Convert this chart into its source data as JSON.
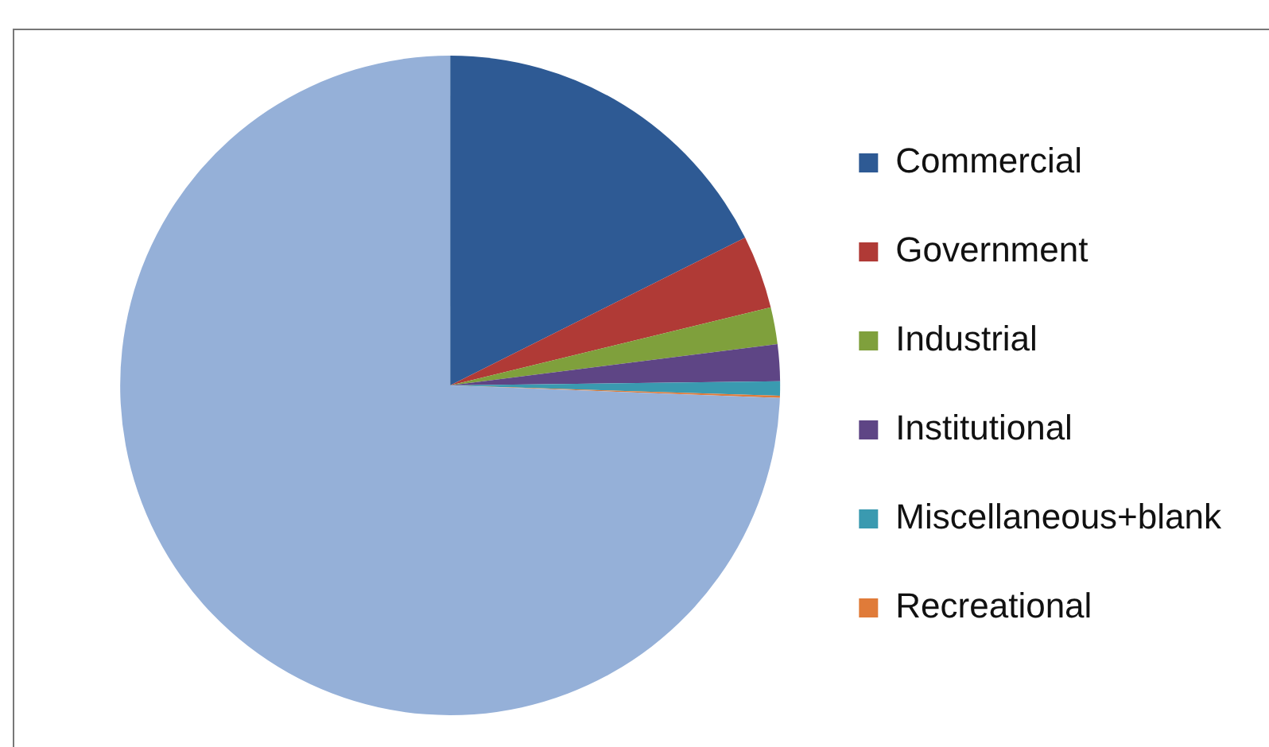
{
  "chart_data": {
    "type": "pie",
    "categories": [
      "Commercial",
      "Government",
      "Industrial",
      "Institutional",
      "Miscellaneous+blank",
      "Recreational",
      null
    ],
    "values": [
      17.6,
      3.6,
      1.8,
      1.8,
      0.7,
      0.1,
      74.4
    ],
    "colors": [
      "#2e5a94",
      "#b03a36",
      "#7fa03c",
      "#5e4585",
      "#3a9ab0",
      "#e07b39",
      "#95b0d8"
    ],
    "legend": "right"
  }
}
